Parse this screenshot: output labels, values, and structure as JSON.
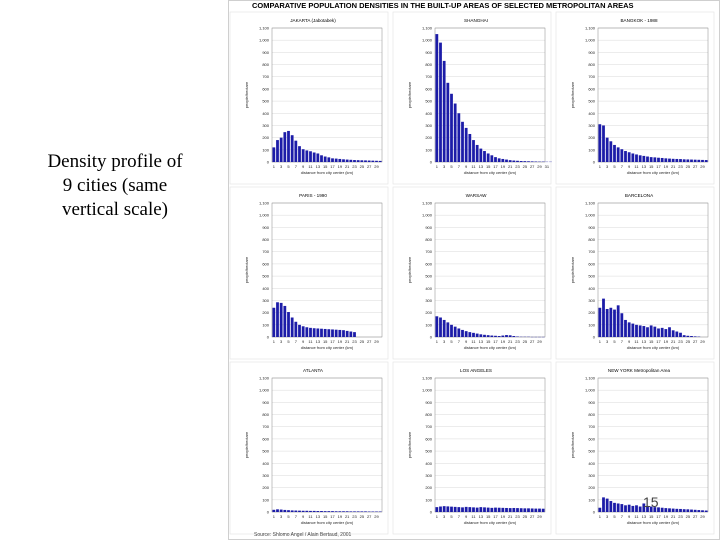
{
  "caption": {
    "lines": [
      "Density profile of",
      "9 cities (same",
      "vertical scale)"
    ]
  },
  "figure": {
    "title": "COMPARATIVE POPULATION DENSITIES IN THE BUILT-UP AREAS OF SELECTED METROPOLITAN AREAS",
    "source": "Source: Shlomo Angel / Alain Bertaud, 2001"
  },
  "page_number": "15",
  "colors": {
    "bar": "#1c1ca8",
    "grid": "#d0d0d0",
    "frame": "#888888"
  },
  "chart_data": [
    {
      "type": "bar",
      "title": "JAKARTA (Jabotabek)",
      "ylabel": "people/hectare",
      "xlabel": "distance from city center (km)",
      "ylim": [
        0,
        1100
      ],
      "yticks": [
        "0",
        "100",
        "200",
        "300",
        "400",
        "500",
        "600",
        "700",
        "800",
        "900",
        "1,000",
        "1,100"
      ],
      "xticks": [
        "1",
        "3",
        "5",
        "7",
        "9",
        "11",
        "13",
        "15",
        "17",
        "19",
        "21",
        "23",
        "25",
        "27",
        "29"
      ],
      "values": [
        120,
        180,
        200,
        245,
        255,
        220,
        175,
        130,
        105,
        95,
        88,
        78,
        70,
        55,
        45,
        38,
        30,
        28,
        25,
        22,
        20,
        18,
        16,
        15,
        14,
        13,
        12,
        11,
        10,
        9
      ]
    },
    {
      "type": "bar",
      "title": "SHANGHAI",
      "ylabel": "people/hectare",
      "xlabel": "distance from city center (km)",
      "ylim": [
        0,
        1100
      ],
      "yticks": [
        "0",
        "100",
        "200",
        "300",
        "400",
        "500",
        "600",
        "700",
        "800",
        "900",
        "1,000",
        "1,100"
      ],
      "xticks": [
        "1",
        "3",
        "5",
        "7",
        "9",
        "11",
        "13",
        "15",
        "17",
        "19",
        "21",
        "23",
        "25",
        "27",
        "29",
        "31"
      ],
      "values": [
        1050,
        980,
        830,
        650,
        560,
        480,
        400,
        330,
        280,
        230,
        180,
        140,
        110,
        90,
        70,
        55,
        40,
        30,
        25,
        20,
        15,
        12,
        10,
        8,
        7,
        6,
        5,
        4,
        3,
        3,
        2,
        2
      ]
    },
    {
      "type": "bar",
      "title": "BANGKOK - 1988",
      "ylabel": "people/hectare",
      "xlabel": "distance from city center (km)",
      "ylim": [
        0,
        1100
      ],
      "yticks": [
        "0",
        "100",
        "200",
        "300",
        "400",
        "500",
        "600",
        "700",
        "800",
        "900",
        "1,000",
        "1,100"
      ],
      "xticks": [
        "1",
        "3",
        "5",
        "7",
        "9",
        "11",
        "13",
        "15",
        "17",
        "19",
        "21",
        "23",
        "25",
        "27",
        "29"
      ],
      "values": [
        310,
        300,
        200,
        170,
        140,
        120,
        105,
        90,
        80,
        70,
        62,
        55,
        50,
        45,
        40,
        38,
        35,
        33,
        30,
        28,
        26,
        25,
        24,
        22,
        21,
        20,
        19,
        18,
        17,
        16
      ]
    },
    {
      "type": "bar",
      "title": "PARIS - 1990",
      "ylabel": "people/hectare",
      "xlabel": "distance from city center (km)",
      "ylim": [
        0,
        1100
      ],
      "yticks": [
        "0",
        "100",
        "200",
        "300",
        "400",
        "500",
        "600",
        "700",
        "800",
        "900",
        "1,000",
        "1,100"
      ],
      "xticks": [
        "1",
        "3",
        "5",
        "7",
        "9",
        "11",
        "13",
        "15",
        "17",
        "19",
        "21",
        "23",
        "25",
        "27",
        "29"
      ],
      "values": [
        240,
        285,
        280,
        255,
        205,
        160,
        125,
        100,
        88,
        80,
        75,
        72,
        70,
        68,
        66,
        64,
        62,
        60,
        58,
        56,
        50,
        45,
        40
      ]
    },
    {
      "type": "bar",
      "title": "WARSAW",
      "ylabel": "people/hectare",
      "xlabel": "distance from city center (km)",
      "ylim": [
        0,
        1100
      ],
      "yticks": [
        "0",
        "100",
        "200",
        "300",
        "400",
        "500",
        "600",
        "700",
        "800",
        "900",
        "1,000",
        "1,100"
      ],
      "xticks": [
        "1",
        "3",
        "5",
        "7",
        "9",
        "11",
        "13",
        "15",
        "17",
        "19",
        "21",
        "23",
        "25",
        "27",
        "29"
      ],
      "values": [
        170,
        160,
        140,
        120,
        100,
        85,
        70,
        58,
        48,
        40,
        34,
        28,
        22,
        18,
        15,
        12,
        10,
        8,
        12,
        16,
        14,
        8,
        4,
        2,
        2,
        2,
        1,
        1,
        1,
        1
      ]
    },
    {
      "type": "bar",
      "title": "BARCELONA",
      "ylabel": "people/hectare",
      "xlabel": "distance from city center (km)",
      "ylim": [
        0,
        1100
      ],
      "yticks": [
        "0",
        "100",
        "200",
        "300",
        "400",
        "500",
        "600",
        "700",
        "800",
        "900",
        "1,000",
        "1,100"
      ],
      "xticks": [
        "1",
        "3",
        "5",
        "7",
        "9",
        "11",
        "13",
        "15",
        "17",
        "19",
        "21",
        "23",
        "25",
        "27",
        "29"
      ],
      "values": [
        240,
        315,
        230,
        240,
        225,
        260,
        195,
        140,
        120,
        110,
        100,
        95,
        90,
        80,
        95,
        85,
        70,
        75,
        65,
        80,
        55,
        45,
        35,
        15,
        10,
        8,
        5,
        3
      ]
    },
    {
      "type": "bar",
      "title": "ATLANTA",
      "ylabel": "people/hectare",
      "xlabel": "distance from city center (km)",
      "ylim": [
        0,
        1100
      ],
      "yticks": [
        "0",
        "100",
        "200",
        "300",
        "400",
        "500",
        "600",
        "700",
        "800",
        "900",
        "1,000",
        "1,100"
      ],
      "xticks": [
        "1",
        "3",
        "5",
        "7",
        "9",
        "11",
        "13",
        "15",
        "17",
        "19",
        "21",
        "23",
        "25",
        "27",
        "29"
      ],
      "values": [
        18,
        22,
        20,
        17,
        15,
        13,
        12,
        11,
        10,
        10,
        9,
        9,
        8,
        8,
        7,
        7,
        7,
        6,
        6,
        6,
        6,
        5,
        5,
        5,
        5,
        5,
        4,
        4,
        4,
        4
      ]
    },
    {
      "type": "bar",
      "title": "LOS ANGELES",
      "ylabel": "people/hectare",
      "xlabel": "distance from city center (km)",
      "ylim": [
        0,
        1100
      ],
      "yticks": [
        "0",
        "100",
        "200",
        "300",
        "400",
        "500",
        "600",
        "700",
        "800",
        "900",
        "1,000",
        "1,100"
      ],
      "xticks": [
        "1",
        "3",
        "5",
        "7",
        "9",
        "11",
        "13",
        "15",
        "17",
        "19",
        "21",
        "23",
        "25",
        "27",
        "29"
      ],
      "values": [
        40,
        45,
        48,
        46,
        44,
        42,
        40,
        38,
        42,
        40,
        38,
        36,
        40,
        38,
        36,
        34,
        36,
        35,
        34,
        33,
        32,
        33,
        32,
        31,
        30,
        30,
        29,
        28,
        28,
        27
      ]
    },
    {
      "type": "bar",
      "title": "NEW YORK Metropolitan Area",
      "ylabel": "people/hectare",
      "xlabel": "distance from city center (km)",
      "ylim": [
        0,
        1100
      ],
      "yticks": [
        "0",
        "100",
        "200",
        "300",
        "400",
        "500",
        "600",
        "700",
        "800",
        "900",
        "1,000",
        "1,100"
      ],
      "xticks": [
        "1",
        "3",
        "5",
        "7",
        "9",
        "11",
        "13",
        "15",
        "17",
        "19",
        "21",
        "23",
        "25",
        "27",
        "29"
      ],
      "values": [
        35,
        120,
        110,
        90,
        75,
        70,
        65,
        55,
        60,
        50,
        55,
        45,
        70,
        50,
        45,
        40,
        38,
        35,
        32,
        30,
        28,
        26,
        25,
        23,
        22,
        20,
        18,
        16,
        14,
        12
      ]
    }
  ]
}
